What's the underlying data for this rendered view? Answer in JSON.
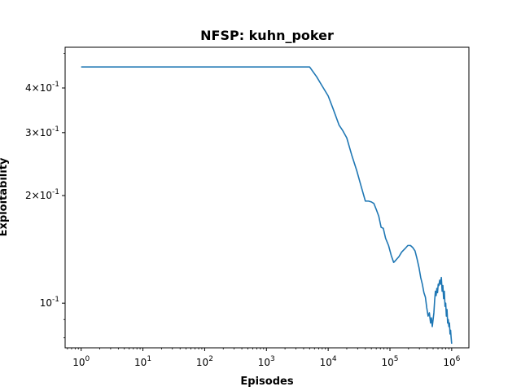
{
  "chart_data": {
    "type": "line",
    "title": "NFSP: kuhn_poker",
    "xlabel": "Episodes",
    "ylabel": "Exploitability",
    "x_scale": "log",
    "y_scale": "log",
    "xlim": [
      0.55,
      1900000
    ],
    "ylim": [
      0.075,
      0.52
    ],
    "grid": false,
    "x_ticks": [
      {
        "value": 1,
        "label": "10^0"
      },
      {
        "value": 10,
        "label": "10^1"
      },
      {
        "value": 100,
        "label": "10^2"
      },
      {
        "value": 1000,
        "label": "10^3"
      },
      {
        "value": 10000,
        "label": "10^4"
      },
      {
        "value": 100000,
        "label": "10^5"
      },
      {
        "value": 1000000,
        "label": "10^6"
      }
    ],
    "y_ticks": [
      {
        "value": 0.1,
        "label": "10^-1"
      },
      {
        "value": 0.2,
        "label": "2×10^-1"
      },
      {
        "value": 0.3,
        "label": "3×10^-1"
      },
      {
        "value": 0.4,
        "label": "4×10^-1"
      }
    ],
    "line_color": "#1f77b4",
    "series": [
      {
        "x": [
          1,
          10,
          100,
          1000,
          5000,
          6500,
          8000,
          10000,
          12000,
          15000,
          17000,
          20000,
          24000,
          29000,
          34000,
          40000,
          45000,
          50000,
          55000,
          60000,
          66000,
          72000,
          78000,
          85000,
          95000,
          105000,
          115000,
          125000,
          140000,
          155000,
          175000,
          195000,
          215000,
          235000,
          255000,
          275000,
          295000,
          315000,
          335000,
          355000,
          375000,
          395000,
          415000,
          435000,
          455000,
          470000,
          485000,
          500000,
          515000,
          530000,
          545000,
          560000,
          575000,
          590000,
          605000,
          620000,
          640000,
          660000,
          680000,
          700000,
          720000,
          740000,
          760000,
          780000,
          800000,
          820000,
          840000,
          860000,
          880000,
          900000,
          920000,
          940000,
          960000,
          980000,
          1000000
        ],
        "y": [
          0.458,
          0.458,
          0.458,
          0.458,
          0.458,
          0.43,
          0.405,
          0.38,
          0.35,
          0.315,
          0.305,
          0.29,
          0.26,
          0.235,
          0.213,
          0.193,
          0.193,
          0.192,
          0.19,
          0.183,
          0.175,
          0.163,
          0.162,
          0.152,
          0.145,
          0.136,
          0.13,
          0.132,
          0.135,
          0.139,
          0.142,
          0.145,
          0.145,
          0.143,
          0.14,
          0.133,
          0.126,
          0.118,
          0.113,
          0.107,
          0.104,
          0.097,
          0.092,
          0.094,
          0.088,
          0.091,
          0.086,
          0.09,
          0.094,
          0.102,
          0.108,
          0.105,
          0.11,
          0.107,
          0.113,
          0.112,
          0.116,
          0.113,
          0.118,
          0.108,
          0.112,
          0.103,
          0.108,
          0.098,
          0.1,
          0.092,
          0.096,
          0.088,
          0.09,
          0.086,
          0.088,
          0.082,
          0.084,
          0.08,
          0.077
        ]
      }
    ]
  }
}
